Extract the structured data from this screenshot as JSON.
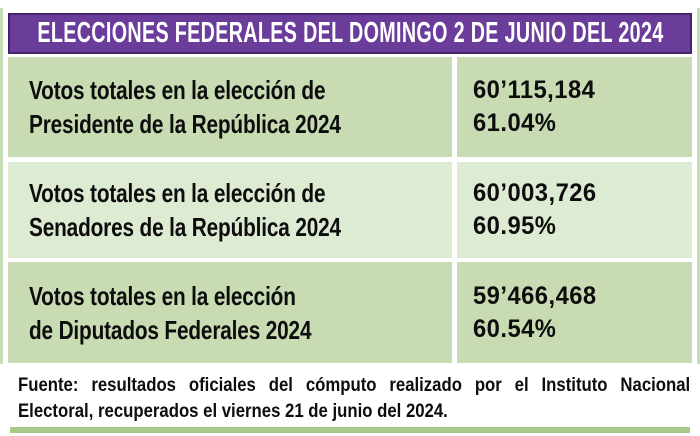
{
  "header": {
    "title": "ELECCIONES FEDERALES DEL DOMINGO 2 DE JUNIO DEL 2024"
  },
  "table": {
    "rows": [
      {
        "label_line1": "Votos totales en la elección de",
        "label_line2": "Presidente de la República 2024",
        "votes": "60’115,184",
        "percent": "61.04%"
      },
      {
        "label_line1": "Votos totales en la elección de",
        "label_line2": "Senadores de la República 2024",
        "votes": "60’003,726",
        "percent": "60.95%"
      },
      {
        "label_line1": "Votos totales en la elección",
        "label_line2": "de Diputados Federales 2024",
        "votes": "59’466,468",
        "percent": "60.54%"
      }
    ]
  },
  "footer": {
    "line1": "Fuente: resultados oficiales del cómputo realizado por el Instituto Nacional",
    "line2": "Electoral, recuperados el viernes 21 de junio del 2024."
  },
  "colors": {
    "header_purple": "#6a3d9b",
    "header_border": "#452569",
    "row_green_dark": "#c8dbb3",
    "row_green_light": "#deebd3",
    "frame_green": "#c6dcb4",
    "rule_green": "#a6c98a",
    "text": "#0d0d0d",
    "title_text": "#ffffff"
  },
  "chart_data": {
    "type": "table",
    "title": "ELECCIONES FEDERALES DEL DOMINGO 2 DE JUNIO DEL 2024",
    "rows": [
      {
        "eleccion": "Votos totales en la elección de Presidente de la República 2024",
        "votos": "60’115,184",
        "porcentaje": "61.04%"
      },
      {
        "eleccion": "Votos totales en la elección de Senadores de la República 2024",
        "votos": "60’003,726",
        "porcentaje": "60.95%"
      },
      {
        "eleccion": "Votos totales en la elección de Diputados Federales 2024",
        "votos": "59’466,468",
        "porcentaje": "60.54%"
      }
    ],
    "source": "Fuente: resultados oficiales del cómputo realizado por el Instituto Nacional Electoral, recuperados el viernes 21 de junio del 2024."
  }
}
